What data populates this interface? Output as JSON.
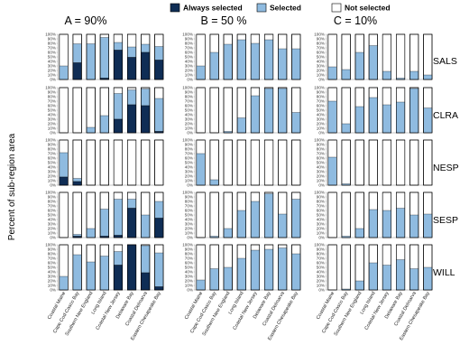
{
  "chart_data": {
    "type": "bar",
    "stacked": true,
    "ylabel": "Percent of sub-region area",
    "yticks": [
      "0%",
      "10%",
      "20%",
      "30%",
      "40%",
      "50%",
      "60%",
      "70%",
      "80%",
      "90%",
      "100%"
    ],
    "ylim": [
      0,
      100
    ],
    "categories": [
      "Coastal Maine",
      "Cape Cod-Casco Bay",
      "Southern New England",
      "Long Island",
      "Coastal New Jersey",
      "Delaware Bay",
      "Coastal Delmarva",
      "Eastern Chesapeake Bay"
    ],
    "legend": {
      "position": "top",
      "entries": [
        {
          "name": "Always selected",
          "color": "#0f2d55"
        },
        {
          "name": "Selected",
          "color": "#8fbbe0"
        },
        {
          "name": "Not selected",
          "color": "#ffffff"
        }
      ]
    },
    "columns": [
      "A = 90%",
      "B = 50 %",
      "C = 10%"
    ],
    "rows": [
      "SALS",
      "CLRA",
      "NESP",
      "SESP",
      "WILL"
    ],
    "panels": [
      [
        {
          "always": [
            0,
            37,
            0,
            3,
            65,
            49,
            60,
            43
          ],
          "selected": [
            30,
            42,
            79,
            90,
            17,
            23,
            18,
            30
          ]
        },
        {
          "always": [
            0,
            0,
            0,
            0,
            30,
            62,
            60,
            3
          ],
          "selected": [
            0,
            0,
            12,
            38,
            57,
            33,
            37,
            73
          ]
        },
        {
          "always": [
            18,
            8,
            0,
            0,
            0,
            0,
            0,
            0
          ],
          "selected": [
            54,
            7,
            0,
            0,
            0,
            0,
            0,
            0
          ]
        },
        {
          "always": [
            0,
            3,
            0,
            3,
            5,
            65,
            0,
            43
          ],
          "selected": [
            0,
            4,
            20,
            60,
            80,
            20,
            50,
            37
          ]
        },
        {
          "always": [
            0,
            0,
            0,
            0,
            55,
            100,
            38,
            7
          ],
          "selected": [
            30,
            78,
            62,
            75,
            30,
            0,
            60,
            75
          ]
        }
      ],
      [
        {
          "always": [
            0,
            0,
            0,
            0,
            0,
            0,
            0,
            0
          ],
          "selected": [
            30,
            60,
            78,
            88,
            80,
            88,
            68,
            68
          ]
        },
        {
          "always": [
            0,
            0,
            0,
            0,
            0,
            0,
            0,
            0
          ],
          "selected": [
            0,
            0,
            3,
            33,
            82,
            98,
            98,
            45
          ]
        },
        {
          "always": [
            0,
            0,
            0,
            0,
            0,
            0,
            0,
            0
          ],
          "selected": [
            70,
            12,
            0,
            0,
            0,
            0,
            0,
            0
          ]
        },
        {
          "always": [
            0,
            0,
            0,
            0,
            0,
            0,
            0,
            0
          ],
          "selected": [
            0,
            3,
            20,
            60,
            80,
            97,
            52,
            85
          ]
        },
        {
          "always": [
            0,
            0,
            0,
            0,
            0,
            0,
            0,
            0
          ],
          "selected": [
            22,
            47,
            50,
            70,
            88,
            90,
            93,
            80
          ]
        }
      ],
      [
        {
          "always": [
            0,
            0,
            0,
            0,
            0,
            0,
            0,
            0
          ],
          "selected": [
            28,
            22,
            60,
            75,
            18,
            3,
            18,
            10
          ]
        },
        {
          "always": [
            0,
            0,
            0,
            0,
            0,
            0,
            0,
            0
          ],
          "selected": [
            70,
            20,
            58,
            78,
            62,
            68,
            98,
            55
          ]
        },
        {
          "always": [
            0,
            0,
            0,
            0,
            0,
            0,
            0,
            0
          ],
          "selected": [
            62,
            3,
            0,
            0,
            0,
            0,
            0,
            0
          ]
        },
        {
          "always": [
            0,
            0,
            0,
            0,
            0,
            0,
            0,
            0
          ],
          "selected": [
            0,
            3,
            20,
            62,
            60,
            65,
            50,
            52
          ]
        },
        {
          "always": [
            0,
            0,
            0,
            0,
            0,
            0,
            0,
            0
          ],
          "selected": [
            0,
            2,
            20,
            60,
            55,
            67,
            47,
            50
          ]
        }
      ]
    ]
  }
}
